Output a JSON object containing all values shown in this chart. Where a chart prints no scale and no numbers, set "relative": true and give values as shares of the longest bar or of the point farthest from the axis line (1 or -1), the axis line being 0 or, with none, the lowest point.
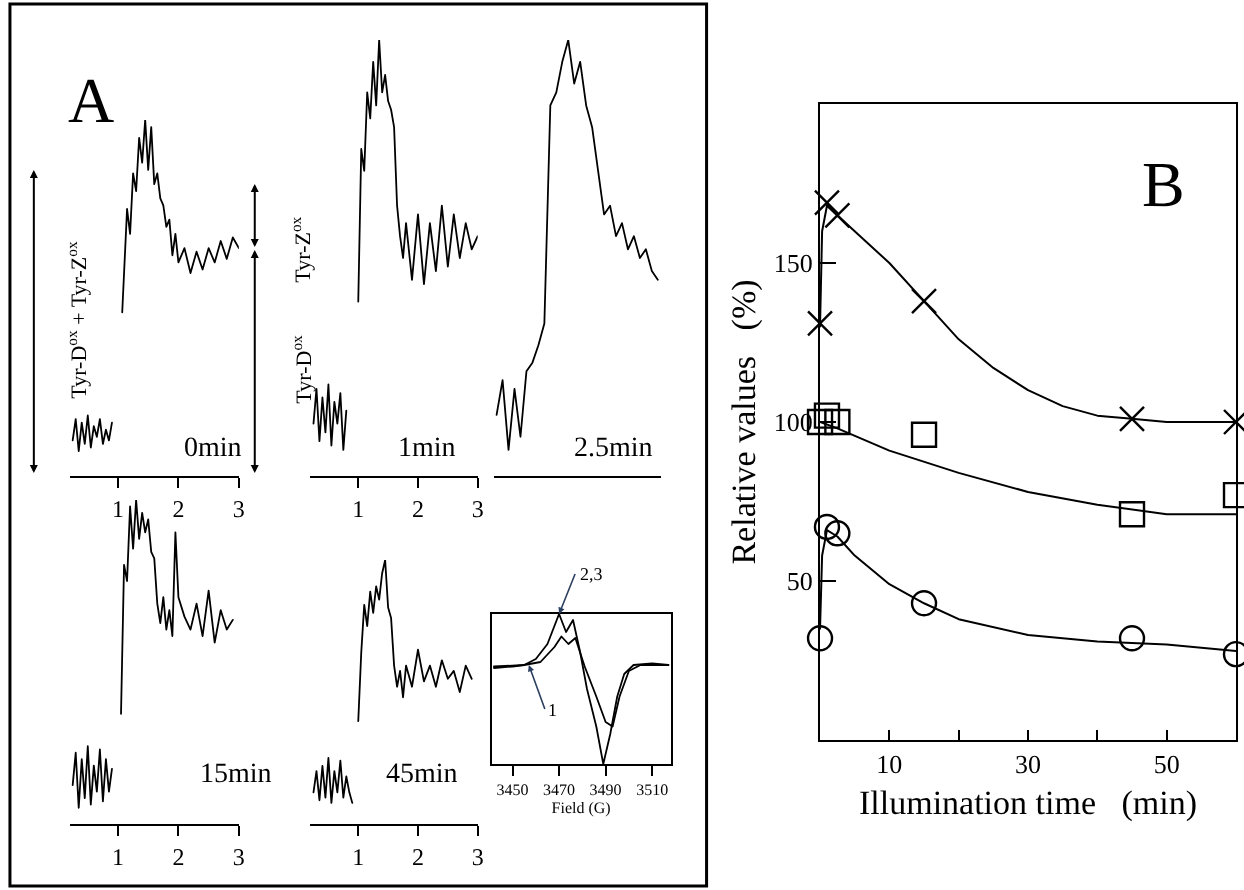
{
  "chart_data": [
    {
      "type": "line",
      "relative": true,
      "title": "0min",
      "annotations": [
        "A",
        "Tyr-D$^{ox}$ + Tyr-Z$^{ox}$"
      ],
      "xlim": [
        0.2,
        3.0
      ],
      "xticks": [
        1,
        2,
        3
      ],
      "tick_labels": "x",
      "series": [
        {
          "color": "#000000",
          "x": [
            0.25,
            0.3,
            0.35,
            0.4,
            0.45,
            0.5,
            0.55,
            0.6,
            0.65,
            0.7,
            0.75,
            0.8,
            0.85,
            0.9
          ],
          "values": [
            0.1,
            0.16,
            0.07,
            0.15,
            0.09,
            0.17,
            0.08,
            0.14,
            0.11,
            0.16,
            0.09,
            0.13,
            0.1,
            0.15
          ]
        },
        {
          "color": "#000000",
          "x": [
            1.07,
            1.15,
            1.2,
            1.25,
            1.3,
            1.35,
            1.4,
            1.45,
            1.5,
            1.55,
            1.6,
            1.65,
            1.7,
            1.75,
            1.8,
            1.85,
            1.9,
            1.95,
            2.0,
            2.1,
            2.2,
            2.3,
            2.4,
            2.5,
            2.6,
            2.7,
            2.8,
            2.9,
            3.0
          ],
          "values": [
            0.46,
            0.75,
            0.68,
            0.85,
            0.8,
            0.95,
            0.88,
            1.0,
            0.86,
            0.98,
            0.82,
            0.85,
            0.78,
            0.76,
            0.7,
            0.72,
            0.62,
            0.68,
            0.6,
            0.64,
            0.57,
            0.63,
            0.58,
            0.64,
            0.6,
            0.66,
            0.61,
            0.67,
            0.64
          ]
        }
      ]
    },
    {
      "type": "line",
      "relative": true,
      "title": "1min",
      "annotations": [
        "Tyr-Z$^{ox}$",
        "Tyr-D$^{ox}$"
      ],
      "xlim": [
        0.2,
        3.0
      ],
      "xticks": [
        1,
        2,
        3
      ],
      "tick_labels": "x",
      "series": [
        {
          "color": "#000000",
          "x": [
            0.25,
            0.3,
            0.35,
            0.4,
            0.45,
            0.5,
            0.55,
            0.6,
            0.65,
            0.7,
            0.75,
            0.8
          ],
          "values": [
            0.12,
            0.2,
            0.08,
            0.18,
            0.1,
            0.21,
            0.07,
            0.17,
            0.12,
            0.19,
            0.06,
            0.15
          ]
        },
        {
          "color": "#000000",
          "x": [
            1.0,
            1.05,
            1.1,
            1.15,
            1.2,
            1.25,
            1.3,
            1.35,
            1.4,
            1.45,
            1.5,
            1.55,
            1.6,
            1.65,
            1.7,
            1.75,
            1.8,
            1.9,
            2.0,
            2.1,
            2.2,
            2.3,
            2.4,
            2.5,
            2.6,
            2.7,
            2.8,
            2.9,
            3.0
          ],
          "values": [
            0.4,
            0.75,
            0.7,
            0.88,
            0.82,
            0.95,
            0.85,
            1.0,
            0.88,
            0.92,
            0.86,
            0.84,
            0.8,
            0.62,
            0.55,
            0.5,
            0.58,
            0.45,
            0.6,
            0.44,
            0.58,
            0.47,
            0.62,
            0.48,
            0.6,
            0.5,
            0.58,
            0.52,
            0.55
          ]
        }
      ]
    },
    {
      "type": "line",
      "relative": true,
      "title": "2.5min",
      "tick_labels": false,
      "categories": [
        null,
        null,
        null,
        null,
        null,
        null,
        null,
        null,
        null,
        null,
        null,
        null,
        null,
        null,
        null,
        null,
        null,
        null,
        null,
        null,
        null,
        null,
        null,
        null,
        null,
        null,
        null,
        null
      ],
      "series": [
        {
          "color": "#000000",
          "values": [
            0.14,
            0.22,
            0.06,
            0.2,
            0.09,
            0.24,
            0.26,
            0.3,
            0.35,
            0.85,
            0.88,
            0.95,
            1.0,
            0.9,
            0.95,
            0.85,
            0.8,
            0.7,
            0.6,
            0.62,
            0.55,
            0.58,
            0.52,
            0.55,
            0.5,
            0.52,
            0.47,
            0.45
          ]
        }
      ]
    },
    {
      "type": "line",
      "relative": true,
      "title": "15min",
      "xlim": [
        0.2,
        3.0
      ],
      "xticks": [
        1,
        2,
        3
      ],
      "tick_labels": "x",
      "series": [
        {
          "color": "#000000",
          "x": [
            0.25,
            0.3,
            0.35,
            0.4,
            0.45,
            0.5,
            0.55,
            0.6,
            0.65,
            0.7,
            0.75,
            0.8,
            0.85,
            0.9
          ],
          "values": [
            0.12,
            0.22,
            0.05,
            0.2,
            0.08,
            0.24,
            0.06,
            0.18,
            0.1,
            0.23,
            0.07,
            0.2,
            0.1,
            0.17
          ]
        },
        {
          "color": "#000000",
          "x": [
            1.05,
            1.1,
            1.15,
            1.2,
            1.25,
            1.3,
            1.35,
            1.4,
            1.45,
            1.5,
            1.55,
            1.6,
            1.65,
            1.7,
            1.75,
            1.8,
            1.85,
            1.9,
            1.95,
            2.0,
            2.1,
            2.2,
            2.3,
            2.4,
            2.5,
            2.6,
            2.7,
            2.8,
            2.9
          ],
          "values": [
            0.34,
            0.8,
            0.75,
            0.98,
            0.85,
            1.0,
            0.88,
            0.96,
            0.9,
            0.94,
            0.84,
            0.82,
            0.68,
            0.62,
            0.7,
            0.6,
            0.66,
            0.58,
            0.9,
            0.7,
            0.64,
            0.6,
            0.68,
            0.58,
            0.72,
            0.56,
            0.66,
            0.6,
            0.63
          ]
        }
      ]
    },
    {
      "type": "line",
      "relative": true,
      "title": "45min",
      "xlim": [
        0.2,
        3.0
      ],
      "xticks": [
        1,
        2,
        3
      ],
      "tick_labels": "x",
      "series": [
        {
          "color": "#000000",
          "x": [
            0.25,
            0.3,
            0.35,
            0.4,
            0.45,
            0.5,
            0.55,
            0.6,
            0.65,
            0.7,
            0.75,
            0.8,
            0.85,
            0.9
          ],
          "values": [
            0.12,
            0.2,
            0.09,
            0.22,
            0.1,
            0.25,
            0.08,
            0.2,
            0.12,
            0.24,
            0.1,
            0.18,
            0.12,
            0.08
          ]
        },
        {
          "color": "#000000",
          "x": [
            1.0,
            1.05,
            1.1,
            1.15,
            1.2,
            1.25,
            1.3,
            1.35,
            1.4,
            1.45,
            1.5,
            1.55,
            1.6,
            1.65,
            1.7,
            1.75,
            1.8,
            1.9,
            2.0,
            2.1,
            2.2,
            2.3,
            2.4,
            2.5,
            2.6,
            2.7,
            2.8,
            2.9
          ],
          "values": [
            0.39,
            0.65,
            0.83,
            0.75,
            0.88,
            0.8,
            0.9,
            0.85,
            0.95,
            1.0,
            0.82,
            0.78,
            0.6,
            0.52,
            0.58,
            0.48,
            0.6,
            0.52,
            0.66,
            0.54,
            0.6,
            0.52,
            0.62,
            0.55,
            0.58,
            0.5,
            0.6,
            0.55
          ]
        }
      ]
    },
    {
      "type": "line",
      "relative": true,
      "xlabel": "Field (G)",
      "xlim": [
        3441,
        3518
      ],
      "xticks": [
        3450,
        3470,
        3490,
        3510
      ],
      "tick_labels": "x",
      "annotations": [
        {
          "text": "2,3",
          "x": 3470,
          "y": 1.0
        },
        {
          "text": "1",
          "x": 3457,
          "y": 0.66
        }
      ],
      "series": [
        {
          "color": "#000000",
          "x": [
            3442,
            3450,
            3455,
            3460,
            3465,
            3470,
            3473,
            3476,
            3479,
            3482,
            3486,
            3489,
            3492,
            3495,
            3498,
            3502,
            3510,
            3517
          ],
          "values": [
            0.64,
            0.65,
            0.66,
            0.7,
            0.8,
            1.0,
            0.88,
            0.96,
            0.75,
            0.5,
            0.25,
            0.0,
            0.2,
            0.45,
            0.6,
            0.66,
            0.67,
            0.66
          ]
        },
        {
          "color": "#000000",
          "x": [
            3442,
            3455,
            3462,
            3468,
            3471,
            3474,
            3477,
            3481,
            3486,
            3490,
            3493,
            3496,
            3500,
            3505,
            3517
          ],
          "values": [
            0.65,
            0.66,
            0.68,
            0.78,
            0.85,
            0.8,
            0.84,
            0.65,
            0.45,
            0.28,
            0.25,
            0.45,
            0.62,
            0.66,
            0.66
          ]
        }
      ]
    },
    {
      "type": "scatter",
      "xlabel": "Illumination time   (min)",
      "ylabel": "Relative values   (%)",
      "annotations": [
        "B"
      ],
      "xlim": [
        0,
        60
      ],
      "ylim": [
        0,
        200
      ],
      "xticks": [
        {
          "value": 10,
          "label": "10"
        },
        {
          "value": 20,
          "label": null
        },
        {
          "value": 30,
          "label": "30"
        },
        {
          "value": 40,
          "label": null
        },
        {
          "value": 50,
          "label": "50"
        }
      ],
      "yticks": [
        50,
        100,
        150
      ],
      "series": [
        {
          "type": "scatter",
          "marker": "cross",
          "color": "#000000",
          "x": [
            0,
            1,
            2.5,
            15,
            45,
            60
          ],
          "values": [
            131,
            169,
            165,
            138,
            101,
            100
          ]
        },
        {
          "type": "scatter",
          "marker": "square",
          "color": "#000000",
          "x": [
            0,
            1,
            2.5,
            15,
            45,
            60
          ],
          "values": [
            100,
            102,
            100,
            96,
            71,
            77
          ]
        },
        {
          "type": "scatter",
          "marker": "circle",
          "color": "#000000",
          "x": [
            0,
            1,
            2.5,
            15,
            45,
            60
          ],
          "values": [
            32,
            67,
            65,
            43,
            32,
            27
          ]
        },
        {
          "type": "line",
          "color": "#000000",
          "x": [
            0,
            0.3,
            1,
            5,
            10,
            15,
            20,
            25,
            30,
            35,
            40,
            45,
            50,
            60
          ],
          "values": [
            130,
            160,
            168,
            160,
            150,
            138,
            126,
            117,
            110,
            105,
            102,
            101,
            100,
            100
          ]
        },
        {
          "type": "line",
          "color": "#000000",
          "x": [
            0,
            2.5,
            10,
            20,
            30,
            40,
            50,
            60
          ],
          "values": [
            100,
            98,
            91,
            84,
            78,
            74,
            71,
            71
          ]
        },
        {
          "type": "line",
          "color": "#000000",
          "x": [
            0,
            0.3,
            1,
            2.5,
            5,
            10,
            15,
            20,
            30,
            40,
            50,
            60
          ],
          "values": [
            35,
            58,
            66,
            64,
            58,
            49,
            43,
            38,
            33,
            31,
            30,
            28
          ]
        }
      ]
    }
  ]
}
